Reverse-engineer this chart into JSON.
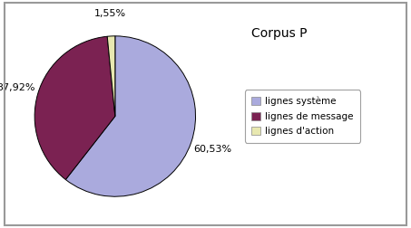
{
  "title": "Corpus P",
  "slices": [
    60.53,
    37.92,
    1.55
  ],
  "labels": [
    "60,53%",
    "37,92%",
    "1,55%"
  ],
  "legend_labels": [
    "lignes système",
    "lignes de message",
    "lignes d'action"
  ],
  "colors": [
    "#aaaadd",
    "#7b2252",
    "#e8e8b0"
  ],
  "startangle": 90,
  "background_color": "#ffffff",
  "border_color": "#999999",
  "title_fontsize": 10,
  "label_fontsize": 8
}
